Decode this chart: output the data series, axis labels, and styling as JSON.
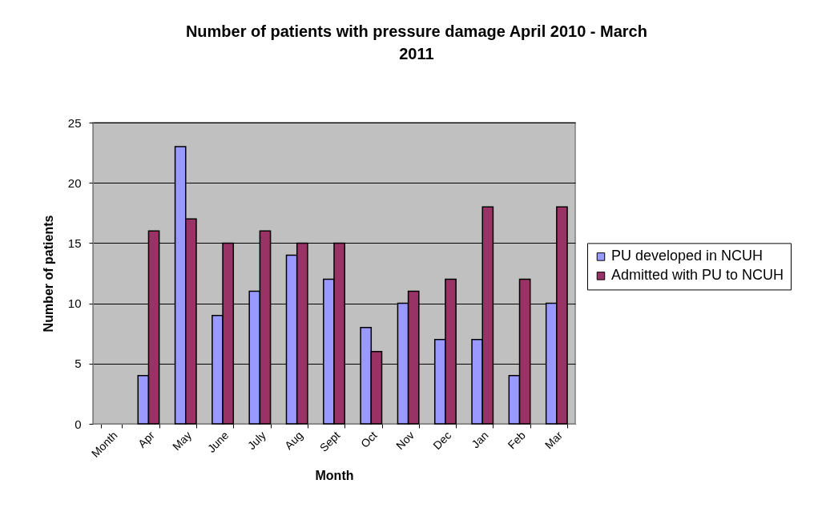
{
  "chart_data": {
    "type": "bar",
    "title": "Number of patients with pressure damage April 2010 - March 2011",
    "xlabel": "Month",
    "ylabel": "Number of patients",
    "categories": [
      "Month",
      "Apr",
      "May",
      "June",
      "July",
      "Aug",
      "Sept",
      "Oct",
      "Nov",
      "Dec",
      "Jan",
      "Feb",
      "Mar"
    ],
    "series": [
      {
        "name": "PU developed in NCUH",
        "color": "#9999ff",
        "values": [
          null,
          4,
          23,
          9,
          11,
          14,
          12,
          8,
          10,
          7,
          7,
          4,
          10
        ]
      },
      {
        "name": "Admitted with PU to NCUH",
        "color": "#993366",
        "values": [
          null,
          16,
          17,
          15,
          16,
          15,
          15,
          6,
          11,
          12,
          18,
          12,
          18
        ]
      }
    ],
    "ylim": [
      0,
      25
    ],
    "yticks": [
      0,
      5,
      10,
      15,
      20,
      25
    ],
    "grid": "y",
    "legend": "right"
  }
}
